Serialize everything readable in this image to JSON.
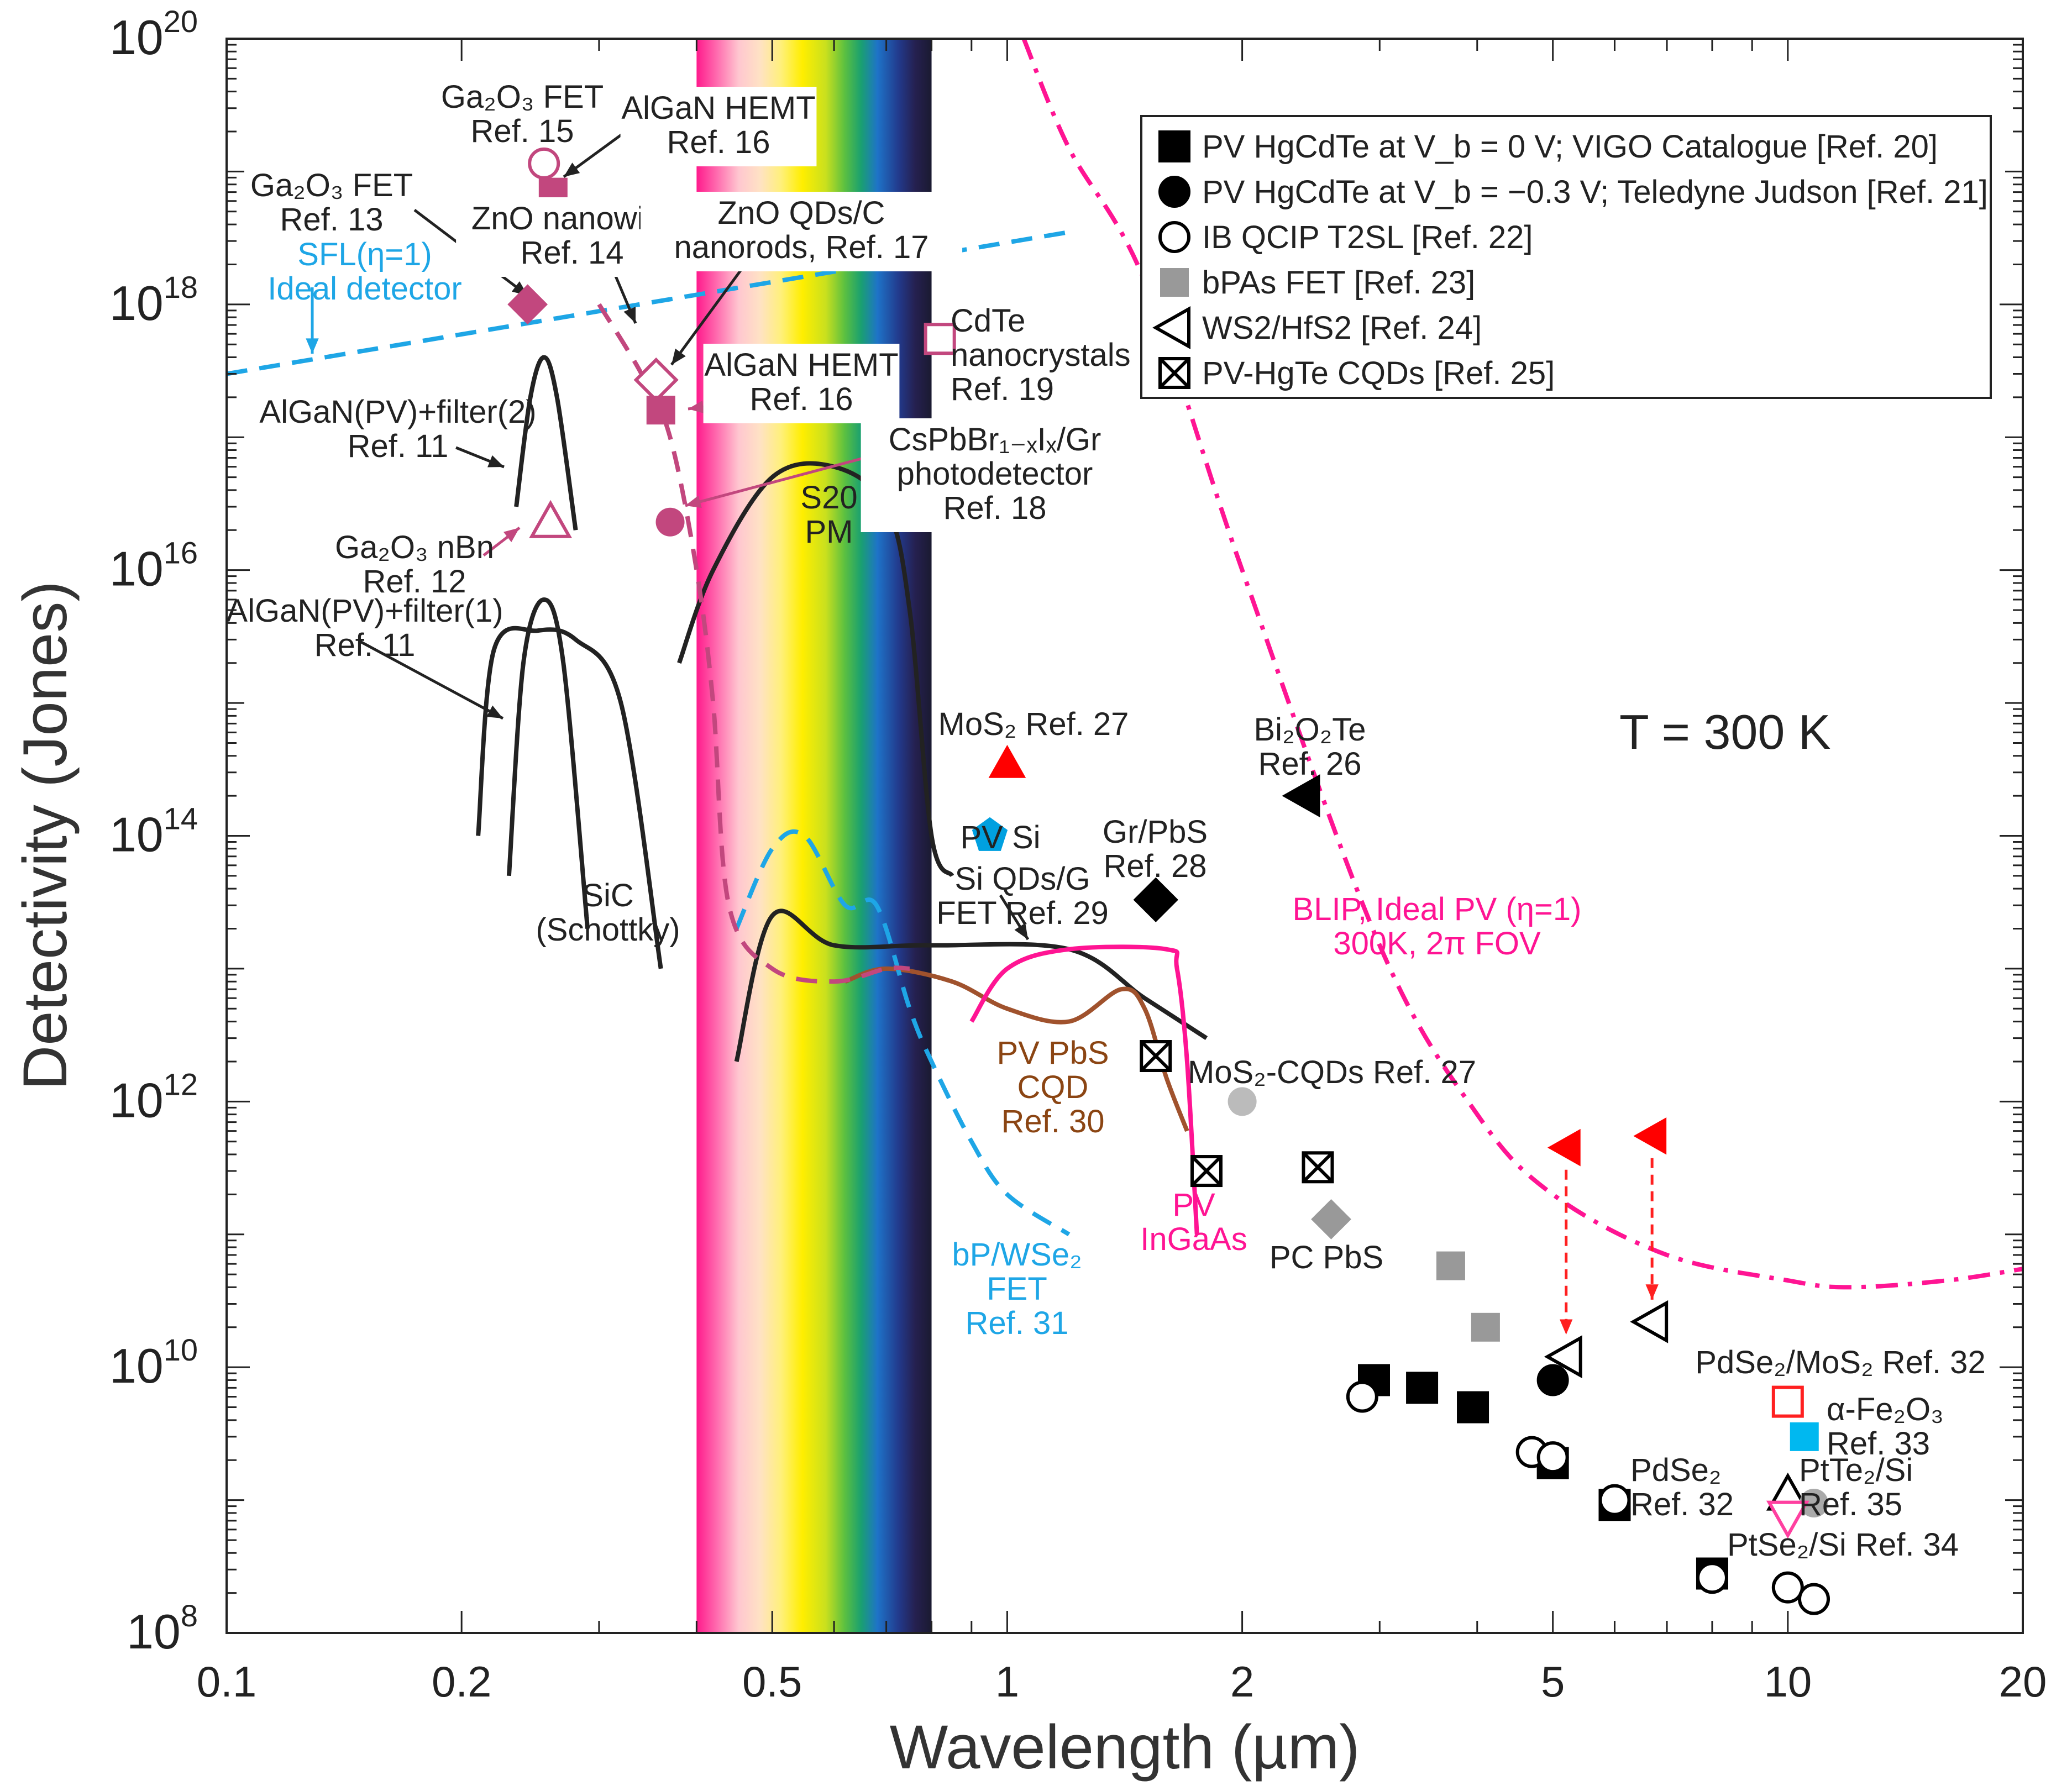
{
  "chart_data": {
    "type": "scatter",
    "x_scale": "log",
    "y_scale": "log",
    "xlim": [
      0.1,
      20
    ],
    "ylim": [
      100000000.0,
      1e+20
    ],
    "xlabel": "Wavelength (µm)",
    "ylabel": "Detectivity (Jones)",
    "x_ticks": [
      {
        "value": 0.1,
        "label": "0.1"
      },
      {
        "value": 0.2,
        "label": "0.2"
      },
      {
        "value": 0.5,
        "label": "0.5"
      },
      {
        "value": 1,
        "label": "1"
      },
      {
        "value": 2,
        "label": "2"
      },
      {
        "value": 5,
        "label": "5"
      },
      {
        "value": 10,
        "label": "10"
      },
      {
        "value": 20,
        "label": "20"
      }
    ],
    "y_ticks": [
      {
        "value": 100000000.0,
        "base": "10",
        "exp": "8"
      },
      {
        "value": 10000000000.0,
        "base": "10",
        "exp": "10"
      },
      {
        "value": 1000000000000.0,
        "base": "10",
        "exp": "12"
      },
      {
        "value": 100000000000000.0,
        "base": "10",
        "exp": "14"
      },
      {
        "value": 1e+16,
        "base": "10",
        "exp": "16"
      },
      {
        "value": 1e+18,
        "base": "10",
        "exp": "18"
      },
      {
        "value": 1e+20,
        "base": "10",
        "exp": "20"
      }
    ],
    "temperature_label": "T = 300 K",
    "visible_band": {
      "from": 0.4,
      "to": 0.8
    },
    "legend": {
      "position": "top-right",
      "entries": [
        {
          "marker": "square",
          "fill": "#000000",
          "text": "PV HgCdTe at V_b = 0 V; VIGO Catalogue [Ref. 20]"
        },
        {
          "marker": "circle",
          "fill": "#000000",
          "text": "PV HgCdTe at V_b = −0.3 V; Teledyne Judson [Ref. 21]"
        },
        {
          "marker": "circle",
          "fill": "none",
          "text": "IB QCIP T2SL [Ref. 22]"
        },
        {
          "marker": "square",
          "fill": "#999999",
          "text": "bPAs FET [Ref. 23]"
        },
        {
          "marker": "triangle-left",
          "fill": "none",
          "text": "WS2/HfS2 [Ref. 24]"
        },
        {
          "marker": "boxx",
          "fill": "none",
          "text": "PV-HgTe CQDs [Ref. 25]"
        }
      ]
    },
    "series": [
      {
        "name": "PV HgCdTe at V_b = 0 V; VIGO Catalogue [Ref. 20]",
        "marker": "square",
        "color": "#000000",
        "points": [
          [
            2.95,
            8000000000.0
          ],
          [
            3.4,
            7000000000.0
          ],
          [
            3.95,
            5000000000.0
          ],
          [
            5.0,
            1900000000.0
          ],
          [
            6.0,
            920000000.0
          ],
          [
            8.0,
            280000000.0
          ]
        ]
      },
      {
        "name": "PV HgCdTe at V_b = −0.3 V; Teledyne Judson [Ref. 21]",
        "marker": "circle",
        "color": "#000000",
        "points": [
          [
            5.0,
            8000000000.0
          ]
        ]
      },
      {
        "name": "IB QCIP T2SL [Ref. 22]",
        "marker": "circle-open",
        "color": "#000000",
        "points": [
          [
            2.85,
            6000000000.0
          ],
          [
            4.7,
            2300000000.0
          ],
          [
            5.0,
            2100000000.0
          ],
          [
            6.0,
            1000000000.0
          ],
          [
            8.0,
            260000000.0
          ],
          [
            10.0,
            220000000.0
          ],
          [
            10.8,
            180000000.0
          ]
        ]
      },
      {
        "name": "bPAs FET [Ref. 23]",
        "marker": "square",
        "color": "#999999",
        "points": [
          [
            3.7,
            58000000000.0
          ],
          [
            4.1,
            20000000000.0
          ]
        ]
      },
      {
        "name": "WS2/HfS2 [Ref. 24]",
        "marker": "triangle-left-open",
        "color": "#000000",
        "points": [
          [
            5.2,
            12000000000.0
          ],
          [
            6.7,
            22000000000.0
          ]
        ]
      },
      {
        "name": "PV-HgTe CQDs [Ref. 25]",
        "marker": "boxx",
        "color": "#000000",
        "points": [
          [
            1.55,
            2200000000000.0
          ],
          [
            1.8,
            300000000000.0
          ],
          [
            2.5,
            320000000000.0
          ]
        ]
      },
      {
        "marker": "triangle-left",
        "color": "#ff0000",
        "points": [
          [
            5.2,
            450000000000.0
          ],
          [
            6.7,
            550000000000.0
          ]
        ]
      },
      {
        "marker": "triangle-up",
        "color": "#ff0000",
        "points": [
          [
            1.0,
            350000000000000.0
          ]
        ]
      },
      {
        "marker": "pentagon",
        "color": "#00a0e0",
        "points": [
          [
            0.95,
            100000000000000.0
          ]
        ]
      },
      {
        "marker": "triangle-left",
        "color": "#000000",
        "points": [
          [
            2.4,
            200000000000000.0
          ]
        ]
      },
      {
        "marker": "diamond",
        "color": "#000000",
        "points": [
          [
            1.55,
            33000000000000.0
          ]
        ]
      },
      {
        "marker": "circle",
        "color": "#bbbbbb",
        "points": [
          [
            2.0,
            1000000000000.0
          ]
        ]
      },
      {
        "marker": "diamond",
        "color": "#999999",
        "points": [
          [
            2.6,
            130000000000.0
          ]
        ]
      },
      {
        "marker": "square-open",
        "color": "#ff2020",
        "points": [
          [
            10.0,
            5500000000.0
          ]
        ]
      },
      {
        "marker": "square",
        "color": "#00b8f0",
        "points": [
          [
            10.5,
            3000000000.0
          ]
        ]
      },
      {
        "marker": "triangle-up-open",
        "color": "#000000",
        "points": [
          [
            10.0,
            1100000000.0
          ]
        ]
      },
      {
        "marker": "circle",
        "color": "#aaaaaa",
        "points": [
          [
            10.8,
            950000000.0
          ]
        ]
      },
      {
        "marker": "triangle-down-open",
        "color": "#ff40a0",
        "points": [
          [
            10.0,
            750000000.0
          ]
        ]
      },
      {
        "marker": "circle-open",
        "color": "#c2477e",
        "points": [
          [
            0.255,
            1.15e+19
          ]
        ]
      },
      {
        "marker": "square",
        "color": "#c2477e",
        "points": [
          [
            0.262,
            7e+18
          ]
        ]
      },
      {
        "marker": "diamond",
        "color": "#c2477e",
        "points": [
          [
            0.243,
            1e+18
          ]
        ]
      },
      {
        "marker": "diamond-open",
        "color": "#c2477e",
        "points": [
          [
            0.355,
            2.7e+17
          ]
        ]
      },
      {
        "marker": "square",
        "color": "#c2477e",
        "points": [
          [
            0.36,
            1.6e+17
          ]
        ]
      },
      {
        "marker": "circle",
        "color": "#c2477e",
        "points": [
          [
            0.37,
            2.3e+16
          ]
        ]
      },
      {
        "marker": "triangle-up-open",
        "color": "#c2477e",
        "points": [
          [
            0.26,
            2.3e+16
          ]
        ]
      },
      {
        "marker": "square-open",
        "color": "#c2477e",
        "points": [
          [
            0.82,
            5.5e+17
          ]
        ]
      }
    ],
    "curves": [
      {
        "name": "SFL(η=1) Ideal detector",
        "color": "#1ea6e6",
        "dash": "dashed",
        "points": [
          [
            0.1,
            3e+17
          ],
          [
            1.2,
            3.5e+18
          ]
        ]
      },
      {
        "name": "BLIP, Ideal PV (η=1) 300K, 2π FOV",
        "color": "#ff1493",
        "dash": "dashdot",
        "points": [
          [
            1.05,
            1e+20
          ],
          [
            1.2,
            1.5e+19
          ],
          [
            1.5,
            1.5e+18
          ],
          [
            2.0,
            1e+16
          ],
          [
            3.0,
            15000000000000.0
          ],
          [
            4.0,
            800000000000.0
          ],
          [
            5.0,
            200000000000.0
          ],
          [
            7.0,
            70000000000.0
          ],
          [
            10.0,
            45000000000.0
          ],
          [
            12.0,
            40000000000.0
          ],
          [
            16.0,
            45000000000.0
          ],
          [
            20.0,
            55000000000.0
          ]
        ]
      },
      {
        "name": "S20 PM",
        "color": "#222222",
        "dash": "solid",
        "points": [
          [
            0.38,
            2000000000000000.0
          ],
          [
            0.42,
            1e+16
          ],
          [
            0.5,
            5e+16
          ],
          [
            0.6,
            6e+16
          ],
          [
            0.7,
            3e+16
          ],
          [
            0.75,
            5000000000000000.0
          ],
          [
            0.8,
            100000000000000.0
          ],
          [
            0.85,
            50000000000000.0
          ]
        ]
      },
      {
        "name": "Si QDs/G FET Ref. 29",
        "color": "#222222",
        "dash": "solid",
        "points": [
          [
            0.45,
            2000000000000.0
          ],
          [
            0.5,
            25000000000000.0
          ],
          [
            0.6,
            15000000000000.0
          ],
          [
            0.8,
            15000000000000.0
          ],
          [
            1.2,
            14000000000000.0
          ],
          [
            1.5,
            6000000000000.0
          ],
          [
            1.8,
            3000000000000.0
          ]
        ]
      },
      {
        "name": "PV PbS CQD Ref. 30",
        "color": "#a0522d",
        "dash": "solid",
        "points": [
          [
            0.62,
            8000000000000.0
          ],
          [
            0.7,
            10000000000000.0
          ],
          [
            0.85,
            8000000000000.0
          ],
          [
            1.0,
            5000000000000.0
          ],
          [
            1.2,
            4000000000000.0
          ],
          [
            1.4,
            7000000000000.0
          ],
          [
            1.5,
            5000000000000.0
          ],
          [
            1.6,
            1500000000000.0
          ],
          [
            1.7,
            600000000000.0
          ]
        ]
      },
      {
        "name": "PV InGaAs",
        "color": "#ff1493",
        "dash": "solid",
        "points": [
          [
            0.9,
            4000000000000.0
          ],
          [
            1.0,
            10000000000000.0
          ],
          [
            1.2,
            14000000000000.0
          ],
          [
            1.6,
            14000000000000.0
          ],
          [
            1.65,
            10000000000000.0
          ],
          [
            1.7,
            2000000000000.0
          ],
          [
            1.75,
            100000000000.0
          ]
        ]
      },
      {
        "name": "bP/WSe2 FET Ref. 31",
        "color": "#1ea6e6",
        "dash": "dashed",
        "points": [
          [
            0.45,
            20000000000000.0
          ],
          [
            0.5,
            80000000000000.0
          ],
          [
            0.55,
            100000000000000.0
          ],
          [
            0.62,
            30000000000000.0
          ],
          [
            0.68,
            30000000000000.0
          ],
          [
            0.75,
            5000000000000.0
          ],
          [
            0.8,
            2000000000000.0
          ],
          [
            0.9,
            500000000000.0
          ],
          [
            1.0,
            200000000000.0
          ],
          [
            1.2,
            100000000000.0
          ]
        ]
      },
      {
        "name": "ZnO nanowire Ref. 14",
        "color": "#c2477e",
        "dash": "dashed",
        "points": [
          [
            0.3,
            1e+18
          ],
          [
            0.34,
            3e+17
          ],
          [
            0.37,
            1e+17
          ],
          [
            0.4,
            1e+16
          ],
          [
            0.42,
            1000000000000000.0
          ],
          [
            0.44,
            30000000000000.0
          ],
          [
            0.5,
            10000000000000.0
          ],
          [
            0.6,
            8000000000000.0
          ],
          [
            0.7,
            10000000000000.0
          ],
          [
            0.75,
            10000000000000.0
          ]
        ]
      },
      {
        "name": "SiC (Schottky)",
        "color": "#222222",
        "dash": "solid",
        "points": [
          [
            0.21,
            100000000000000.0
          ],
          [
            0.22,
            2500000000000000.0
          ],
          [
            0.25,
            3500000000000000.0
          ],
          [
            0.28,
            3000000000000000.0
          ],
          [
            0.32,
            1000000000000000.0
          ],
          [
            0.36,
            10000000000000.0
          ]
        ]
      },
      {
        "name": "AlGaN(PV)+filter(1) Ref. 11",
        "color": "#222222",
        "dash": "solid",
        "points": [
          [
            0.23,
            50000000000000.0
          ],
          [
            0.24,
            2000000000000000.0
          ],
          [
            0.255,
            6000000000000000.0
          ],
          [
            0.27,
            2000000000000000.0
          ],
          [
            0.29,
            20000000000000.0
          ]
        ]
      },
      {
        "name": "AlGaN(PV)+filter(2) Ref. 11",
        "color": "#222222",
        "dash": "solid",
        "points": [
          [
            0.235,
            3e+16
          ],
          [
            0.245,
            2e+17
          ],
          [
            0.255,
            4e+17
          ],
          [
            0.265,
            2e+17
          ],
          [
            0.28,
            2e+16
          ]
        ]
      }
    ],
    "annotations": [
      {
        "lines": [
          "Ga₂O₃ FET",
          "Ref. 15"
        ],
        "color": "#222222"
      },
      {
        "lines": [
          "AlGaN HEMT",
          "Ref. 16"
        ],
        "color": "#222222"
      },
      {
        "lines": [
          "Ga₂O₃ FET",
          "Ref. 13"
        ],
        "color": "#222222"
      },
      {
        "lines": [
          "ZnO nanowire",
          "Ref. 14"
        ],
        "color": "#222222"
      },
      {
        "lines": [
          "ZnO QDs/C",
          "nanorods, Ref. 17"
        ],
        "color": "#222222"
      },
      {
        "lines": [
          "SFL(η=1)",
          "Ideal detector"
        ],
        "color": "#1ea6e6"
      },
      {
        "lines": [
          "CdTe",
          "nanocrystals",
          "Ref. 19"
        ],
        "color": "#222222"
      },
      {
        "lines": [
          "AlGaN HEMT",
          "Ref. 16"
        ],
        "color": "#222222"
      },
      {
        "lines": [
          "AlGaN(PV)+filter(2)",
          "Ref. 11"
        ],
        "color": "#222222"
      },
      {
        "lines": [
          "CsPbBr₁₋ₓIₓ/Gr",
          "photodetector",
          "Ref. 18"
        ],
        "color": "#222222"
      },
      {
        "lines": [
          "S20",
          "PM"
        ],
        "color": "#222222"
      },
      {
        "lines": [
          "Ga₂O₃ nBn",
          "Ref. 12"
        ],
        "color": "#222222"
      },
      {
        "lines": [
          "AlGaN(PV)+filter(1)",
          "Ref. 11"
        ],
        "color": "#222222"
      },
      {
        "lines": [
          "MoS₂ Ref. 27"
        ],
        "color": "#222222"
      },
      {
        "lines": [
          "Bi₂O₂Te",
          "Ref. 26"
        ],
        "color": "#222222"
      },
      {
        "lines": [
          "PV Si"
        ],
        "color": "#222222"
      },
      {
        "lines": [
          "Gr/PbS",
          "Ref. 28"
        ],
        "color": "#222222"
      },
      {
        "lines": [
          "Si QDs/G",
          "FET Ref. 29"
        ],
        "color": "#222222"
      },
      {
        "lines": [
          "SiC",
          "(Schottky)"
        ],
        "color": "#222222"
      },
      {
        "lines": [
          "BLIP, Ideal PV (η=1)",
          "300K, 2π FOV"
        ],
        "color": "#ff1493"
      },
      {
        "lines": [
          "PV PbS",
          "CQD",
          "Ref. 30"
        ],
        "color": "#8b4513"
      },
      {
        "lines": [
          "MoS₂-CQDs Ref. 27"
        ],
        "color": "#222222"
      },
      {
        "lines": [
          "PV",
          "InGaAs"
        ],
        "color": "#ff1493"
      },
      {
        "lines": [
          "PC PbS"
        ],
        "color": "#222222"
      },
      {
        "lines": [
          "bP/WSe₂",
          "FET",
          "Ref. 31"
        ],
        "color": "#1ea6e6"
      },
      {
        "lines": [
          "PdSe₂/MoS₂ Ref. 32"
        ],
        "color": "#222222"
      },
      {
        "lines": [
          "α-Fe₂O₃",
          "Ref. 33"
        ],
        "color": "#222222"
      },
      {
        "lines": [
          "PdSe₂",
          "Ref. 32"
        ],
        "color": "#222222"
      },
      {
        "lines": [
          "PtTe₂/Si",
          "Ref. 35"
        ],
        "color": "#222222"
      },
      {
        "lines": [
          "PtSe₂/Si Ref. 34"
        ],
        "color": "#222222"
      }
    ]
  }
}
